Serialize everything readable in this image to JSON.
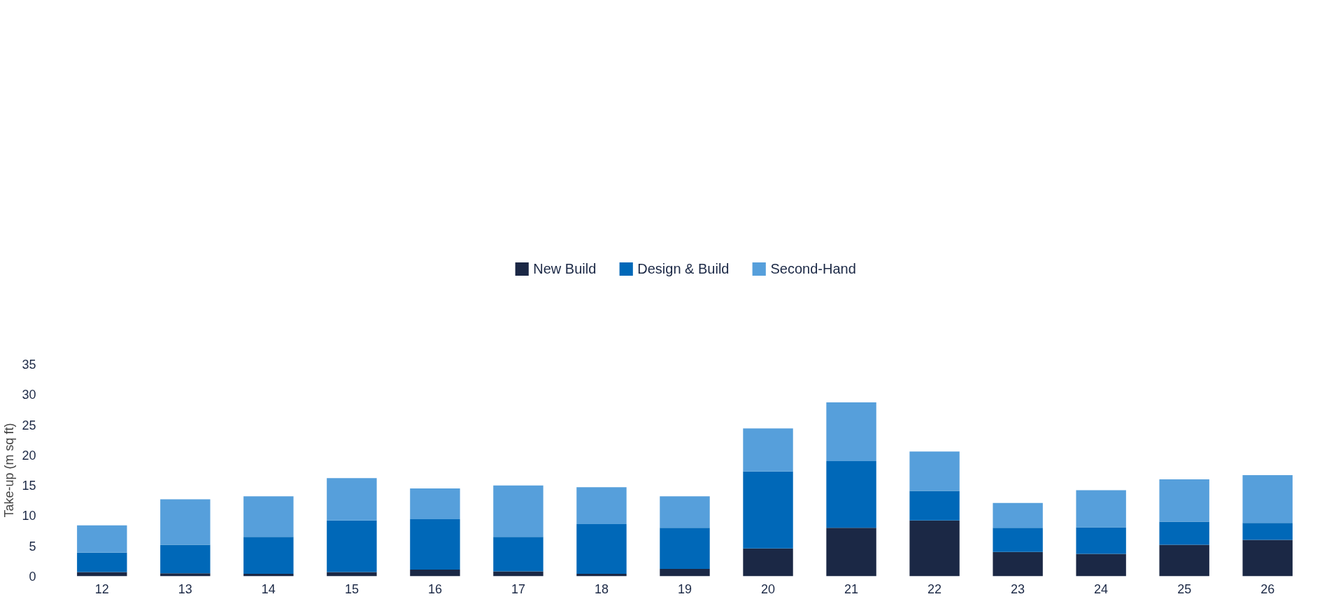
{
  "chart_data": {
    "type": "bar",
    "stacked": true,
    "ylabel": "Take-up (m sq ft)",
    "categories": [
      "12",
      "13",
      "14",
      "15",
      "16",
      "17",
      "18",
      "19",
      "20",
      "21",
      "22",
      "23",
      "24",
      "25",
      "26"
    ],
    "series": [
      {
        "name": "New Build",
        "color": "#1b2845",
        "values": [
          0.7,
          0.5,
          0.4,
          0.7,
          1.1,
          0.8,
          0.4,
          1.2,
          4.6,
          8.0,
          9.2,
          4.0,
          3.7,
          5.2,
          6.0
        ]
      },
      {
        "name": "Design & Build",
        "color": "#0068b8",
        "values": [
          3.2,
          4.7,
          6.1,
          8.5,
          8.3,
          5.7,
          8.2,
          6.8,
          12.7,
          11.0,
          4.9,
          4.0,
          4.4,
          3.8,
          2.8
        ]
      },
      {
        "name": "Second-Hand",
        "color": "#569fdb",
        "values": [
          4.5,
          7.5,
          6.7,
          7.0,
          5.1,
          8.5,
          6.1,
          5.2,
          7.1,
          9.7,
          6.5,
          4.1,
          6.1,
          7.0,
          7.9
        ]
      }
    ],
    "ylim": [
      0,
      35
    ],
    "yticks": [
      0,
      5,
      10,
      15,
      20,
      25,
      30,
      35
    ],
    "grid": false,
    "legend": "top"
  }
}
